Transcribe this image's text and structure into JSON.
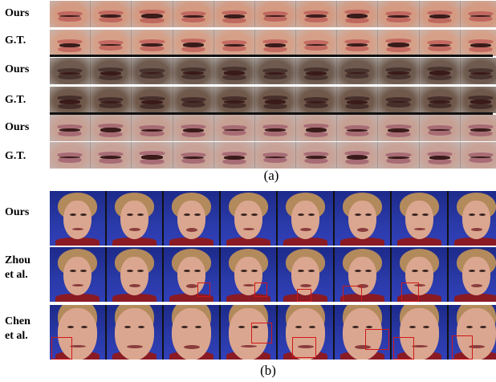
{
  "panel_a": {
    "caption": "(a)",
    "rows": [
      {
        "label": "Ours",
        "skin": "#d49a82",
        "lip": "#c0685f"
      },
      {
        "label": "G.T.",
        "skin": "#d6a088",
        "lip": "#c46a61"
      },
      {
        "label": "Ours",
        "skin": "#6e5a4e",
        "lip": "#4a3430"
      },
      {
        "label": "G.T.",
        "skin": "#70594b",
        "lip": "#47302b"
      },
      {
        "label": "Ours",
        "skin": "#c7a094",
        "lip": "#a76b74"
      },
      {
        "label": "G.T.",
        "skin": "#c9a297",
        "lip": "#a86c76"
      }
    ]
  },
  "panel_b": {
    "caption": "(b)",
    "rows": [
      {
        "label": "Ours"
      },
      {
        "label": "Zhou\net al."
      },
      {
        "label": "Chen\net al."
      }
    ],
    "colors": {
      "background": "#2a3aa8",
      "skin": "#dba68f",
      "hair": "#b38a5c",
      "shirt": "#8a1a24"
    }
  }
}
